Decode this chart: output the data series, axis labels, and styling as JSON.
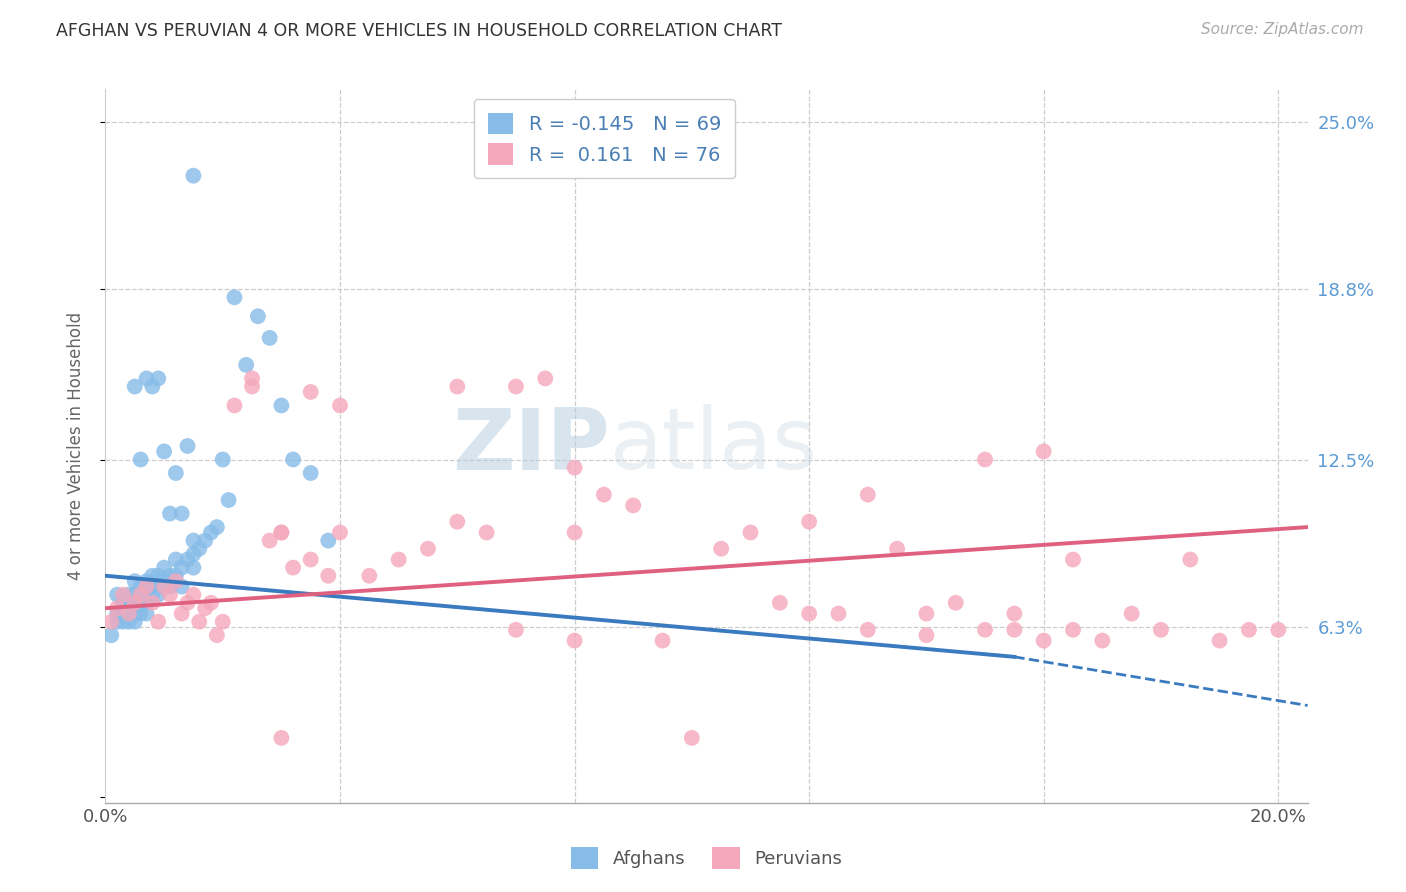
{
  "title": "AFGHAN VS PERUVIAN 4 OR MORE VEHICLES IN HOUSEHOLD CORRELATION CHART",
  "source": "Source: ZipAtlas.com",
  "ylabel": "4 or more Vehicles in Household",
  "xlim": [
    0.0,
    0.205
  ],
  "ylim": [
    -0.002,
    0.262
  ],
  "color_afghan": "#87bce8",
  "color_peruvian": "#f5a8bc",
  "color_trend_afghan": "#3a7abf",
  "color_trend_peruvian": "#e06080",
  "color_right_labels": "#5b9bd5",
  "legend_R_afghan": "-0.145",
  "legend_N_afghan": "69",
  "legend_R_peruvian": "0.161",
  "legend_N_peruvian": "76",
  "trend_afghan_x0": 0.0,
  "trend_afghan_y0": 0.082,
  "trend_afghan_x1": 0.155,
  "trend_afghan_y1": 0.052,
  "trend_afghan_dash_x1": 0.205,
  "trend_afghan_dash_y1": 0.034,
  "trend_peruvian_x0": 0.0,
  "trend_peruvian_y0": 0.07,
  "trend_peruvian_x1": 0.205,
  "trend_peruvian_y1": 0.1,
  "afghans_x": [
    0.001,
    0.002,
    0.002,
    0.002,
    0.003,
    0.003,
    0.003,
    0.003,
    0.004,
    0.004,
    0.004,
    0.004,
    0.005,
    0.005,
    0.005,
    0.005,
    0.005,
    0.006,
    0.006,
    0.006,
    0.006,
    0.007,
    0.007,
    0.007,
    0.007,
    0.008,
    0.008,
    0.008,
    0.009,
    0.009,
    0.009,
    0.01,
    0.01,
    0.01,
    0.011,
    0.011,
    0.012,
    0.012,
    0.013,
    0.013,
    0.014,
    0.015,
    0.015,
    0.016,
    0.017,
    0.018,
    0.019,
    0.02,
    0.021,
    0.022,
    0.024,
    0.026,
    0.028,
    0.03,
    0.032,
    0.035,
    0.038,
    0.015,
    0.014,
    0.013,
    0.012,
    0.011,
    0.01,
    0.009,
    0.008,
    0.007,
    0.006,
    0.005,
    0.015
  ],
  "afghans_y": [
    0.06,
    0.065,
    0.068,
    0.075,
    0.07,
    0.072,
    0.068,
    0.065,
    0.072,
    0.068,
    0.075,
    0.065,
    0.072,
    0.068,
    0.075,
    0.08,
    0.065,
    0.075,
    0.07,
    0.068,
    0.078,
    0.075,
    0.072,
    0.08,
    0.068,
    0.078,
    0.075,
    0.082,
    0.08,
    0.075,
    0.082,
    0.08,
    0.078,
    0.085,
    0.082,
    0.078,
    0.082,
    0.088,
    0.085,
    0.078,
    0.088,
    0.085,
    0.09,
    0.092,
    0.095,
    0.098,
    0.1,
    0.125,
    0.11,
    0.185,
    0.16,
    0.178,
    0.17,
    0.145,
    0.125,
    0.12,
    0.095,
    0.095,
    0.13,
    0.105,
    0.12,
    0.105,
    0.128,
    0.155,
    0.152,
    0.155,
    0.125,
    0.152,
    0.23
  ],
  "peruvians_x": [
    0.001,
    0.002,
    0.003,
    0.004,
    0.005,
    0.006,
    0.007,
    0.008,
    0.009,
    0.01,
    0.011,
    0.012,
    0.013,
    0.014,
    0.015,
    0.016,
    0.017,
    0.018,
    0.019,
    0.02,
    0.022,
    0.025,
    0.028,
    0.03,
    0.032,
    0.035,
    0.038,
    0.04,
    0.045,
    0.05,
    0.055,
    0.06,
    0.065,
    0.07,
    0.075,
    0.08,
    0.085,
    0.09,
    0.095,
    0.1,
    0.105,
    0.11,
    0.115,
    0.12,
    0.125,
    0.13,
    0.135,
    0.14,
    0.145,
    0.15,
    0.155,
    0.16,
    0.165,
    0.17,
    0.175,
    0.18,
    0.185,
    0.19,
    0.195,
    0.2,
    0.025,
    0.03,
    0.035,
    0.04,
    0.06,
    0.07,
    0.08,
    0.12,
    0.15,
    0.155,
    0.16,
    0.165,
    0.14,
    0.13,
    0.08,
    0.03
  ],
  "peruvians_y": [
    0.065,
    0.07,
    0.075,
    0.068,
    0.072,
    0.075,
    0.078,
    0.072,
    0.065,
    0.078,
    0.075,
    0.08,
    0.068,
    0.072,
    0.075,
    0.065,
    0.07,
    0.072,
    0.06,
    0.065,
    0.145,
    0.155,
    0.095,
    0.098,
    0.085,
    0.15,
    0.082,
    0.145,
    0.082,
    0.088,
    0.092,
    0.152,
    0.098,
    0.062,
    0.155,
    0.098,
    0.112,
    0.108,
    0.058,
    0.022,
    0.092,
    0.098,
    0.072,
    0.102,
    0.068,
    0.062,
    0.092,
    0.068,
    0.072,
    0.062,
    0.068,
    0.058,
    0.062,
    0.058,
    0.068,
    0.062,
    0.088,
    0.058,
    0.062,
    0.062,
    0.152,
    0.098,
    0.088,
    0.098,
    0.102,
    0.152,
    0.122,
    0.068,
    0.125,
    0.062,
    0.128,
    0.088,
    0.06,
    0.112,
    0.058,
    0.022
  ]
}
